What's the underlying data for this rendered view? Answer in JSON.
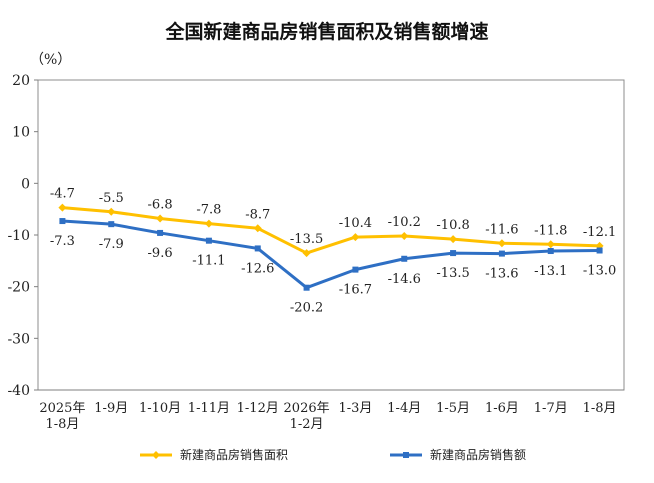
{
  "chart_data": {
    "type": "line",
    "title": "全国新建商品房销售面积及销售额增速",
    "y_unit": "（%）",
    "ylim": [
      -40,
      20
    ],
    "yticks": [
      20,
      10,
      0,
      -10,
      -20,
      -30,
      -40
    ],
    "grid": false,
    "legend_position": "bottom",
    "categories": [
      [
        "2025年",
        "1-8月"
      ],
      [
        "1-9月"
      ],
      [
        "1-10月"
      ],
      [
        "1-11月"
      ],
      [
        "1-12月"
      ],
      [
        "2026年",
        "1-2月"
      ],
      [
        "1-3月"
      ],
      [
        "1-4月"
      ],
      [
        "1-5月"
      ],
      [
        "1-6月"
      ],
      [
        "1-7月"
      ],
      [
        "1-8月"
      ]
    ],
    "series": [
      {
        "name": "新建商品房销售面积",
        "color": "#FFC000",
        "marker": "diamond",
        "label_position": "above",
        "values": [
          -4.7,
          -5.5,
          -6.8,
          -7.8,
          -8.7,
          -13.5,
          -10.4,
          -10.2,
          -10.8,
          -11.6,
          -11.8,
          -12.1
        ],
        "labels": [
          "-4.7",
          "-5.5",
          "-6.8",
          "-7.8",
          "-8.7",
          "-13.5",
          "-10.4",
          "-10.2",
          "-10.8",
          "-11.6",
          "-11.8",
          "-12.1"
        ]
      },
      {
        "name": "新建商品房销售额",
        "color": "#2E6FC4",
        "marker": "square",
        "label_position": "below",
        "values": [
          -7.3,
          -7.9,
          -9.6,
          -11.1,
          -12.6,
          -20.2,
          -16.7,
          -14.6,
          -13.5,
          -13.6,
          -13.1,
          -13.0
        ],
        "labels": [
          "-7.3",
          "-7.9",
          "-9.6",
          "-11.1",
          "-12.6",
          "-20.2",
          "-16.7",
          "-14.6",
          "-13.5",
          "-13.6",
          "-13.1",
          "-13.0"
        ]
      }
    ]
  }
}
